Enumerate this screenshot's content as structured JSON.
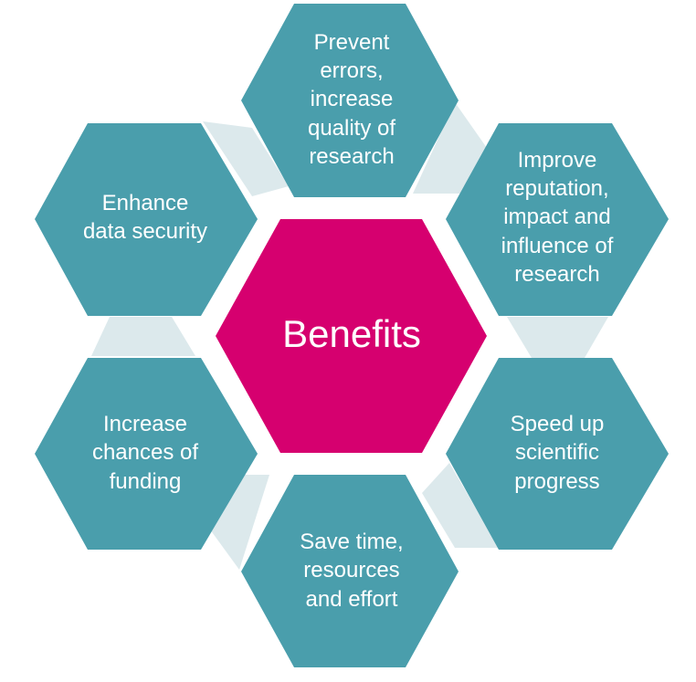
{
  "colors": {
    "center": "#d6006f",
    "outer": "#4a9eac",
    "connector": "#dce9ec",
    "text": "#ffffff"
  },
  "center": {
    "label": "Benefits"
  },
  "hexagons": [
    {
      "label": "Prevent\nerrors,\nincrease\nquality of\nresearch"
    },
    {
      "label": "Improve\nreputation,\nimpact and\ninfluence of\nresearch"
    },
    {
      "label": "Speed up\nscientific\nprogress"
    },
    {
      "label": "Save time,\nresources\nand effort"
    },
    {
      "label": "Increase\nchances of\nfunding"
    },
    {
      "label": "Enhance\ndata security"
    }
  ]
}
